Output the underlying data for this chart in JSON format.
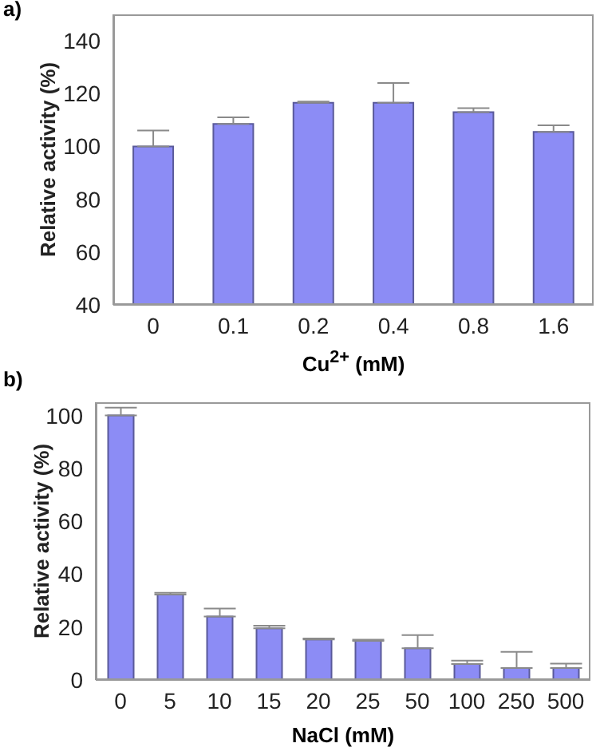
{
  "chart_data": [
    {
      "type": "bar",
      "title": "a)",
      "xlabel": "Cu$^{2+}$ (mM)",
      "ylabel": "Relative activity (%)",
      "categories": [
        "0",
        "0.1",
        "0.2",
        "0.4",
        "0.8",
        "1.6"
      ],
      "values": [
        100,
        108.5,
        116.5,
        116.5,
        113,
        105.5
      ],
      "errors": [
        [
          100,
          106
        ],
        [
          108.5,
          111
        ],
        [
          116.5,
          117
        ],
        [
          116.5,
          124
        ],
        [
          113,
          114.5
        ],
        [
          105.5,
          108
        ]
      ],
      "color": "#8c8cf5",
      "ylim": [
        40,
        150
      ],
      "yticks": [
        40,
        60,
        80,
        100,
        120,
        140
      ]
    },
    {
      "type": "bar",
      "title": "b)",
      "xlabel": "NaCl (mM)",
      "ylabel": "Relative activity (%)",
      "categories": [
        "0",
        "5",
        "10",
        "15",
        "20",
        "25",
        "50",
        "100",
        "250",
        "500"
      ],
      "values": [
        100,
        32.3,
        24,
        19.5,
        15.3,
        14.8,
        12,
        6,
        4.5,
        4.5
      ],
      "errors": [
        [
          100,
          103
        ],
        [
          32.3,
          33
        ],
        [
          24,
          27
        ],
        [
          19.5,
          20.5
        ],
        [
          15.3,
          15.7
        ],
        [
          14.8,
          15.2
        ],
        [
          12,
          17
        ],
        [
          6,
          7.3
        ],
        [
          4.5,
          10.6
        ],
        [
          4.5,
          6.2
        ]
      ],
      "color": "#8c8cf5",
      "ylim": [
        0,
        105
      ],
      "yticks": [
        0,
        20,
        40,
        60,
        80,
        100
      ]
    }
  ]
}
